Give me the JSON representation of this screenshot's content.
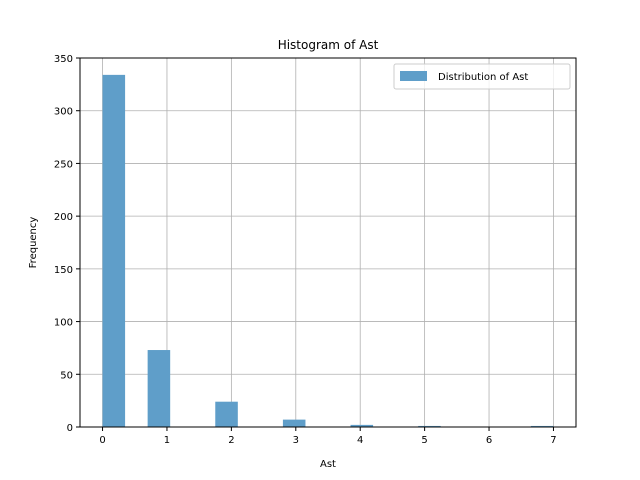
{
  "chart_data": {
    "type": "bar",
    "title": "Histogram of Ast",
    "xlabel": "Ast",
    "ylabel": "Frequency",
    "xlim": [
      -0.35,
      7.35
    ],
    "ylim": [
      0,
      350
    ],
    "xticks": [
      0,
      1,
      2,
      3,
      4,
      5,
      6,
      7
    ],
    "yticks": [
      0,
      50,
      100,
      150,
      200,
      250,
      300,
      350
    ],
    "grid": true,
    "legend": {
      "position": "top-right"
    },
    "series": [
      {
        "name": "Distribution of Ast",
        "color": "#5f9ec9",
        "bins": [
          {
            "x0": 0.0,
            "x1": 0.35,
            "count": 334
          },
          {
            "x0": 0.7,
            "x1": 1.05,
            "count": 73
          },
          {
            "x0": 1.75,
            "x1": 2.1,
            "count": 24
          },
          {
            "x0": 2.8,
            "x1": 3.15,
            "count": 7
          },
          {
            "x0": 3.85,
            "x1": 4.2,
            "count": 2
          },
          {
            "x0": 4.9,
            "x1": 5.25,
            "count": 1
          },
          {
            "x0": 6.65,
            "x1": 7.0,
            "count": 1
          }
        ]
      }
    ]
  }
}
